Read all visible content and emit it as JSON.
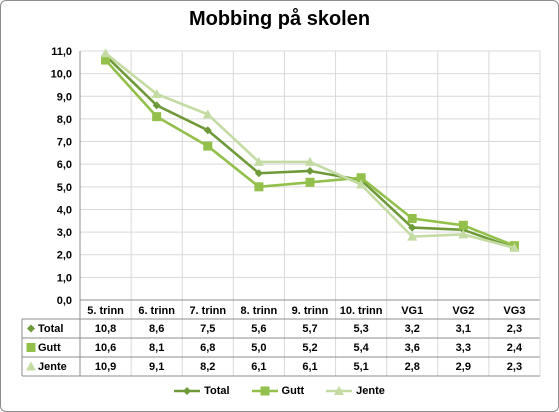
{
  "chart_data": {
    "type": "line",
    "title": "Mobbing på skolen",
    "xlabel": "",
    "ylabel": "",
    "categories": [
      "5. trinn",
      "6. trinn",
      "7. trinn",
      "8. trinn",
      "9. trinn",
      "10. trinn",
      "VG1",
      "VG2",
      "VG3"
    ],
    "ylim": [
      0,
      11
    ],
    "yticks": [
      "0,0",
      "1,0",
      "2,0",
      "3,0",
      "4,0",
      "5,0",
      "6,0",
      "7,0",
      "8,0",
      "9,0",
      "10,0",
      "11,0"
    ],
    "grid": true,
    "legend": "bottom",
    "data_table": true,
    "series": [
      {
        "name": "Total",
        "color": "#6f9a3a",
        "marker": "diamond",
        "values": [
          10.8,
          8.6,
          7.5,
          5.6,
          5.7,
          5.3,
          3.2,
          3.1,
          2.3
        ],
        "labels": [
          "10,8",
          "8,6",
          "7,5",
          "5,6",
          "5,7",
          "5,3",
          "3,2",
          "3,1",
          "2,3"
        ]
      },
      {
        "name": "Gutt",
        "color": "#92c04a",
        "marker": "square",
        "values": [
          10.6,
          8.1,
          6.8,
          5.0,
          5.2,
          5.4,
          3.6,
          3.3,
          2.4
        ],
        "labels": [
          "10,6",
          "8,1",
          "6,8",
          "5,0",
          "5,2",
          "5,4",
          "3,6",
          "3,3",
          "2,4"
        ]
      },
      {
        "name": "Jente",
        "color": "#c4dba4",
        "marker": "triangle",
        "values": [
          10.9,
          9.1,
          8.2,
          6.1,
          6.1,
          5.1,
          2.8,
          2.9,
          2.3
        ],
        "labels": [
          "10,9",
          "9,1",
          "8,2",
          "6,1",
          "6,1",
          "5,1",
          "2,8",
          "2,9",
          "2,3"
        ]
      }
    ]
  }
}
